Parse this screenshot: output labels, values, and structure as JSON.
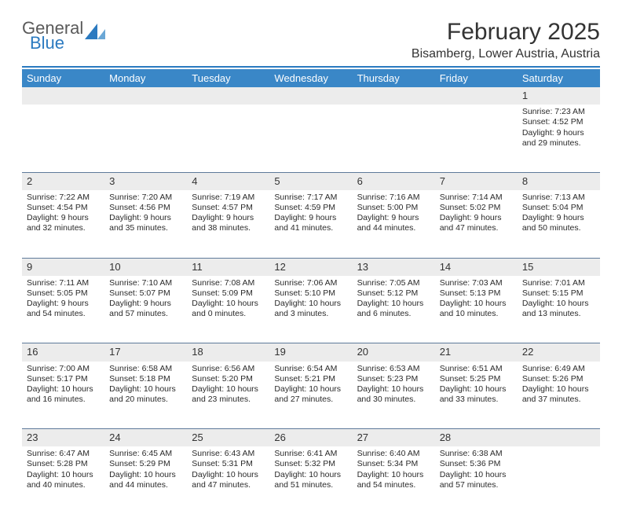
{
  "logo": {
    "line1": "General",
    "line2": "Blue",
    "text_color": "#5a5a5a",
    "blue_color": "#2b7ac0"
  },
  "header": {
    "title": "February 2025",
    "location": "Bisamberg, Lower Austria, Austria",
    "title_fontsize": 30,
    "location_fontsize": 16,
    "rule_color": "#2b7ac0"
  },
  "calendar": {
    "header_bg": "#3a87c7",
    "header_text_color": "#ffffff",
    "daynum_bg": "#ececec",
    "row_divider_color": "#5e7a9a",
    "body_fontsize": 10.5,
    "weekdays": [
      "Sunday",
      "Monday",
      "Tuesday",
      "Wednesday",
      "Thursday",
      "Friday",
      "Saturday"
    ],
    "weeks": [
      [
        null,
        null,
        null,
        null,
        null,
        null,
        {
          "n": "1",
          "sunrise": "7:23 AM",
          "sunset": "4:52 PM",
          "daylight": "9 hours and 29 minutes."
        }
      ],
      [
        {
          "n": "2",
          "sunrise": "7:22 AM",
          "sunset": "4:54 PM",
          "daylight": "9 hours and 32 minutes."
        },
        {
          "n": "3",
          "sunrise": "7:20 AM",
          "sunset": "4:56 PM",
          "daylight": "9 hours and 35 minutes."
        },
        {
          "n": "4",
          "sunrise": "7:19 AM",
          "sunset": "4:57 PM",
          "daylight": "9 hours and 38 minutes."
        },
        {
          "n": "5",
          "sunrise": "7:17 AM",
          "sunset": "4:59 PM",
          "daylight": "9 hours and 41 minutes."
        },
        {
          "n": "6",
          "sunrise": "7:16 AM",
          "sunset": "5:00 PM",
          "daylight": "9 hours and 44 minutes."
        },
        {
          "n": "7",
          "sunrise": "7:14 AM",
          "sunset": "5:02 PM",
          "daylight": "9 hours and 47 minutes."
        },
        {
          "n": "8",
          "sunrise": "7:13 AM",
          "sunset": "5:04 PM",
          "daylight": "9 hours and 50 minutes."
        }
      ],
      [
        {
          "n": "9",
          "sunrise": "7:11 AM",
          "sunset": "5:05 PM",
          "daylight": "9 hours and 54 minutes."
        },
        {
          "n": "10",
          "sunrise": "7:10 AM",
          "sunset": "5:07 PM",
          "daylight": "9 hours and 57 minutes."
        },
        {
          "n": "11",
          "sunrise": "7:08 AM",
          "sunset": "5:09 PM",
          "daylight": "10 hours and 0 minutes."
        },
        {
          "n": "12",
          "sunrise": "7:06 AM",
          "sunset": "5:10 PM",
          "daylight": "10 hours and 3 minutes."
        },
        {
          "n": "13",
          "sunrise": "7:05 AM",
          "sunset": "5:12 PM",
          "daylight": "10 hours and 6 minutes."
        },
        {
          "n": "14",
          "sunrise": "7:03 AM",
          "sunset": "5:13 PM",
          "daylight": "10 hours and 10 minutes."
        },
        {
          "n": "15",
          "sunrise": "7:01 AM",
          "sunset": "5:15 PM",
          "daylight": "10 hours and 13 minutes."
        }
      ],
      [
        {
          "n": "16",
          "sunrise": "7:00 AM",
          "sunset": "5:17 PM",
          "daylight": "10 hours and 16 minutes."
        },
        {
          "n": "17",
          "sunrise": "6:58 AM",
          "sunset": "5:18 PM",
          "daylight": "10 hours and 20 minutes."
        },
        {
          "n": "18",
          "sunrise": "6:56 AM",
          "sunset": "5:20 PM",
          "daylight": "10 hours and 23 minutes."
        },
        {
          "n": "19",
          "sunrise": "6:54 AM",
          "sunset": "5:21 PM",
          "daylight": "10 hours and 27 minutes."
        },
        {
          "n": "20",
          "sunrise": "6:53 AM",
          "sunset": "5:23 PM",
          "daylight": "10 hours and 30 minutes."
        },
        {
          "n": "21",
          "sunrise": "6:51 AM",
          "sunset": "5:25 PM",
          "daylight": "10 hours and 33 minutes."
        },
        {
          "n": "22",
          "sunrise": "6:49 AM",
          "sunset": "5:26 PM",
          "daylight": "10 hours and 37 minutes."
        }
      ],
      [
        {
          "n": "23",
          "sunrise": "6:47 AM",
          "sunset": "5:28 PM",
          "daylight": "10 hours and 40 minutes."
        },
        {
          "n": "24",
          "sunrise": "6:45 AM",
          "sunset": "5:29 PM",
          "daylight": "10 hours and 44 minutes."
        },
        {
          "n": "25",
          "sunrise": "6:43 AM",
          "sunset": "5:31 PM",
          "daylight": "10 hours and 47 minutes."
        },
        {
          "n": "26",
          "sunrise": "6:41 AM",
          "sunset": "5:32 PM",
          "daylight": "10 hours and 51 minutes."
        },
        {
          "n": "27",
          "sunrise": "6:40 AM",
          "sunset": "5:34 PM",
          "daylight": "10 hours and 54 minutes."
        },
        {
          "n": "28",
          "sunrise": "6:38 AM",
          "sunset": "5:36 PM",
          "daylight": "10 hours and 57 minutes."
        },
        null
      ]
    ],
    "labels": {
      "sunrise": "Sunrise:",
      "sunset": "Sunset:",
      "daylight": "Daylight:"
    }
  }
}
